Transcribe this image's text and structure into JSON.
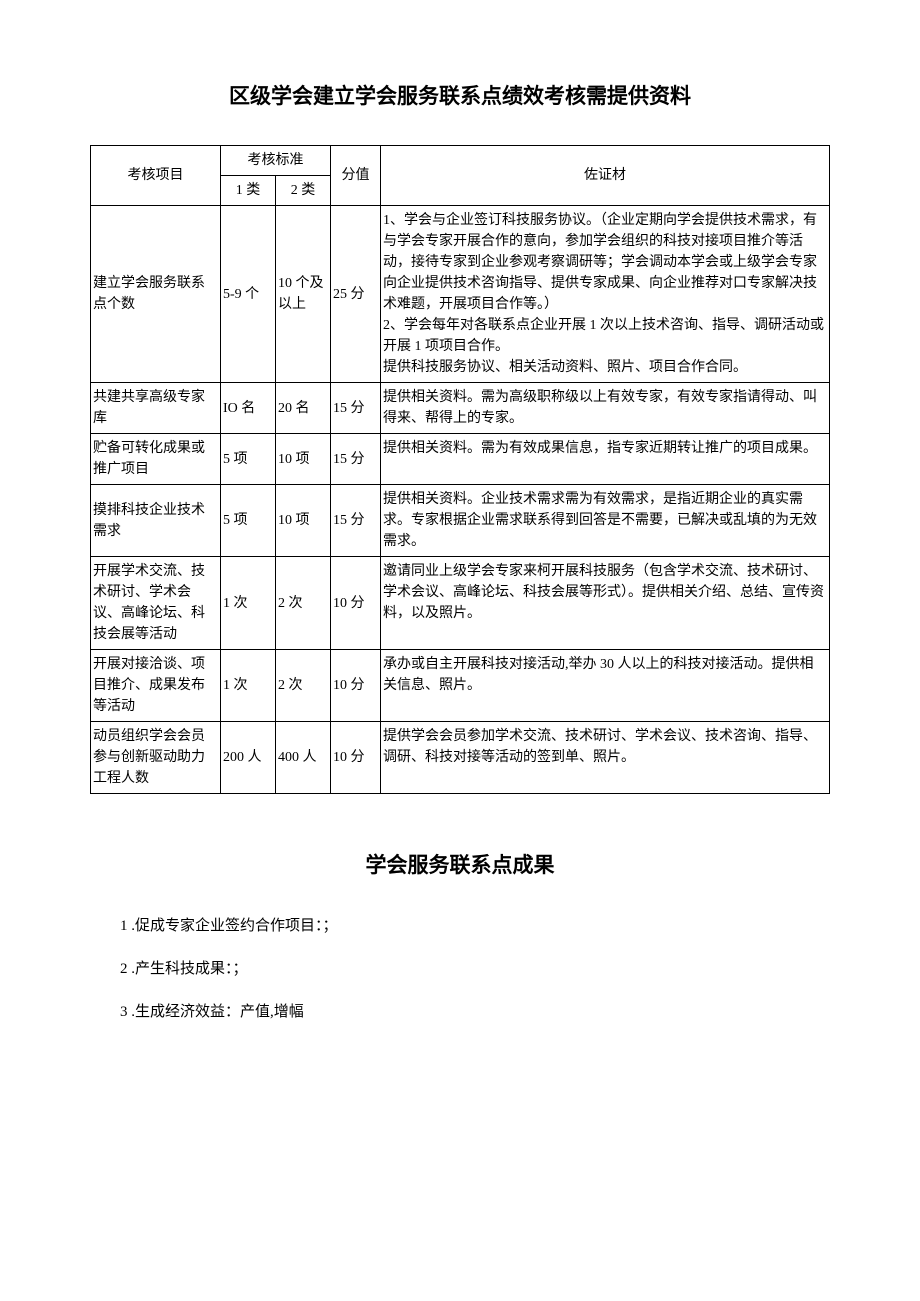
{
  "title": "区级学会建立学会服务联系点绩效考核需提供资料",
  "table": {
    "headers": {
      "item": "考核项目",
      "standard": "考核标准",
      "type1": "1 类",
      "type2": "2 类",
      "score": "分值",
      "material": "佐证材"
    },
    "rows": [
      {
        "item": "建立学会服务联系点个数",
        "type1": "5-9 个",
        "type2": "10 个及以上",
        "score": "25 分",
        "material": "1、学会与企业签订科技服务协议。（企业定期向学会提供技术需求，有与学会专家开展合作的意向，参加学会组织的科技对接项目推介等活动，接待专家到企业参观考察调研等；学会调动本学会或上级学会专家向企业提供技术咨询指导、提供专家成果、向企业推荐对口专家解决技术难题，开展项目合作等。）\n2、学会每年对各联系点企业开展 1 次以上技术咨询、指导、调研活动或开展 1 项项目合作。\n提供科技服务协议、相关活动资料、照片、项目合作合同。"
      },
      {
        "item": "共建共享高级专家库",
        "type1": "IO 名",
        "type2": "20 名",
        "score": "15 分",
        "material": "提供相关资料。需为高级职称级以上有效专家，有效专家指请得动、叫得来、帮得上的专家。"
      },
      {
        "item": "贮备可转化成果或推广项目",
        "type1": "5 项",
        "type2": "10 项",
        "score": "15 分",
        "material": "提供相关资料。需为有效成果信息，指专家近期转让推广的项目成果。"
      },
      {
        "item": "摸排科技企业技术需求",
        "type1": "5 项",
        "type2": "10 项",
        "score": "15 分",
        "material": "提供相关资料。企业技术需求需为有效需求，是指近期企业的真实需求。专家根据企业需求联系得到回答是不需要，已解决或乱填的为无效需求。"
      },
      {
        "item": "开展学术交流、技术研讨、学术会议、高峰论坛、科技会展等活动",
        "type1": "1 次",
        "type2": "2 次",
        "score": "10 分",
        "material": "邀请同业上级学会专家来柯开展科技服务（包含学术交流、技术研讨、学术会议、高峰论坛、科技会展等形式）。提供相关介绍、总结、宣传资料，以及照片。"
      },
      {
        "item": "开展对接洽谈、项目推介、成果发布等活动",
        "type1": "1 次",
        "type2": "2 次",
        "score": "10 分",
        "material": "承办或自主开展科技对接活动,举办 30 人以上的科技对接活动。提供相关信息、照片。"
      },
      {
        "item": "动员组织学会会员参与创新驱动助力工程人数",
        "type1": "200 人",
        "type2": "400 人",
        "score": "10 分",
        "material": "提供学会会员参加学术交流、技术研讨、学术会议、技术咨询、指导、调研、科技对接等活动的签到单、照片。"
      }
    ]
  },
  "subtitle": "学会服务联系点成果",
  "results": [
    "1 .促成专家企业签约合作项目：；",
    "2 .产生科技成果：；",
    "3 .生成经济效益：产值,增幅"
  ]
}
